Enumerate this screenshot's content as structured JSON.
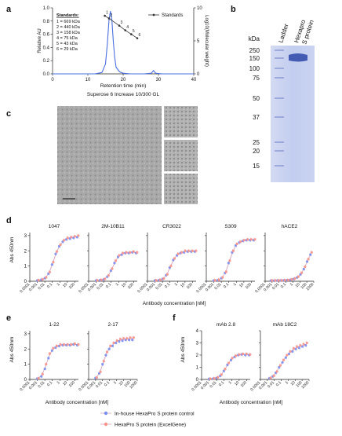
{
  "panels": {
    "a": {
      "label": "a",
      "xlabel": "Retention time (min)",
      "subtitle": "Superose 6 Increase 10/300 GL",
      "ylabel_left": "Relative AU",
      "ylabel_right": "Log10(Molecular weight)",
      "legend": "Standards",
      "standards_title": "Standards:",
      "standards": [
        "1 = 669 kDa",
        "2 = 440 kDa",
        "3 = 158 kDa",
        "4 = 75 kDa",
        "5 = 43 kDa",
        "6 = 29 kDa"
      ]
    },
    "b": {
      "label": "b",
      "lane_ladder": "Ladder",
      "lane_sample_line1": "Hexapro",
      "lane_sample_line2": "S protein",
      "unit": "kDa",
      "markers": [
        "250",
        "150",
        "100",
        "75",
        "50",
        "37",
        "25",
        "20",
        "15"
      ]
    },
    "c": {
      "label": "c"
    },
    "d": {
      "label": "d",
      "xlabel": "Antibody concentration [nM]",
      "ylabel": "Abs 450nm"
    },
    "e": {
      "label": "e",
      "xlabel": "Antibody concentration [nM]",
      "ylabel": "Abs 450nm"
    },
    "f": {
      "label": "f",
      "xlabel": "Antibody concentration [nM]",
      "ylabel": "Abs 450nm"
    }
  },
  "legend": {
    "series1": "In-house HexaPro S protein control",
    "series2": "HexaPro S protein (ExcelGene)"
  },
  "colors": {
    "series1": "#7b8ff0",
    "series2": "#f5948c",
    "curve": "#d7a3b8",
    "chromatogram": "#4a6fe0",
    "gel_bg": "#c9d2ee",
    "band": "#2d47a8"
  },
  "chart_data": [
    {
      "id": "a",
      "type": "line",
      "xlabel": "Retention time (min)",
      "ylabel": "Relative AU",
      "ylabel_right": "Log10(Molecular weight)",
      "xlim": [
        0,
        40
      ],
      "ylim": [
        0,
        1.0
      ],
      "ylim_right": [
        0,
        10
      ],
      "x_ticks": [
        0,
        10,
        20,
        30,
        40
      ],
      "y_ticks": [
        "0.0",
        "0.2",
        "0.4",
        "0.6",
        "0.8",
        "1.0"
      ],
      "y_ticks_right": [
        0,
        5,
        10
      ],
      "series": [
        {
          "x": [
            0,
            8,
            12,
            14,
            15,
            15.5,
            16,
            16.4,
            16.8,
            17.2,
            17.6,
            18,
            19,
            20,
            22,
            26,
            28,
            28.6,
            29.2,
            31,
            40
          ],
          "y": [
            0.0,
            0.0,
            0.0,
            0.02,
            0.15,
            0.45,
            0.82,
            0.95,
            0.82,
            0.5,
            0.25,
            0.1,
            0.03,
            0.01,
            0.0,
            0.0,
            0.01,
            0.05,
            0.01,
            0.0,
            0.0
          ]
        },
        {
          "name": "Standards",
          "axis": "right",
          "x": [
            14.8,
            16.0,
            18.9,
            20.6,
            22.3,
            24.0
          ],
          "y": [
            8.8,
            8.4,
            7.3,
            6.6,
            6.0,
            5.4
          ],
          "labels": [
            "1",
            "2",
            "3",
            "4",
            "5",
            "6"
          ]
        }
      ]
    },
    {
      "id": "d",
      "type": "scatter",
      "x_ticks": [
        "0.0001",
        "0.001",
        "0.01",
        "0.1",
        "1",
        "10",
        "100",
        "1000"
      ],
      "y_ticks": [
        "0",
        "1",
        "2",
        "3"
      ],
      "ylim": [
        0,
        3.2
      ],
      "log_x": true,
      "x": [
        0.0012,
        0.0041,
        0.0123,
        0.037,
        0.111,
        0.333,
        1,
        3,
        9,
        27,
        81,
        243
      ],
      "plots": [
        {
          "title": "1047",
          "xlim": [
            0.0001,
            300
          ],
          "series": [
            {
              "values": [
                0.05,
                0.1,
                0.2,
                0.5,
                1.1,
                1.8,
                2.3,
                2.6,
                2.75,
                2.8,
                2.85,
                2.9
              ]
            },
            {
              "values": [
                0.07,
                0.12,
                0.25,
                0.6,
                1.25,
                1.95,
                2.4,
                2.7,
                2.85,
                2.9,
                2.95,
                3.0
              ]
            }
          ]
        },
        {
          "title": "2M-10B11",
          "xlim": [
            0.0001,
            300
          ],
          "series": [
            {
              "values": [
                0.05,
                0.07,
                0.12,
                0.3,
                0.7,
                1.2,
                1.6,
                1.75,
                1.85,
                1.85,
                1.9,
                1.85
              ]
            },
            {
              "values": [
                0.06,
                0.09,
                0.15,
                0.38,
                0.82,
                1.35,
                1.7,
                1.85,
                1.9,
                1.9,
                1.95,
                1.9
              ]
            }
          ]
        },
        {
          "title": "CR3022",
          "xlim": [
            0.0001,
            300
          ],
          "series": [
            {
              "values": [
                0.05,
                0.07,
                0.15,
                0.4,
                0.9,
                1.4,
                1.7,
                1.85,
                1.9,
                1.95,
                1.95,
                1.95
              ]
            },
            {
              "values": [
                0.06,
                0.09,
                0.18,
                0.45,
                1.0,
                1.5,
                1.8,
                1.9,
                2.0,
                2.0,
                2.0,
                2.0
              ]
            }
          ]
        },
        {
          "title": "S309",
          "xlim": [
            0.0001,
            300
          ],
          "series": [
            {
              "values": [
                0.05,
                0.08,
                0.2,
                0.55,
                1.2,
                1.9,
                2.35,
                2.55,
                2.65,
                2.7,
                2.7,
                2.7
              ]
            },
            {
              "values": [
                0.06,
                0.1,
                0.25,
                0.62,
                1.35,
                2.0,
                2.45,
                2.6,
                2.7,
                2.75,
                2.75,
                2.75
              ]
            }
          ]
        },
        {
          "title": "hACE2",
          "xlim": [
            0.0001,
            1000
          ],
          "x": [
            0.0008,
            0.0024,
            0.0072,
            0.02,
            0.06,
            0.18,
            0.55,
            1.6,
            5,
            15,
            45,
            135,
            400
          ],
          "series": [
            {
              "values": [
                0.04,
                0.04,
                0.05,
                0.05,
                0.06,
                0.07,
                0.1,
                0.15,
                0.25,
                0.45,
                0.8,
                1.3,
                1.75
              ]
            },
            {
              "values": [
                0.05,
                0.05,
                0.06,
                0.06,
                0.07,
                0.08,
                0.12,
                0.18,
                0.3,
                0.55,
                0.95,
                1.45,
                1.9
              ]
            }
          ]
        }
      ]
    },
    {
      "id": "e",
      "type": "scatter",
      "x_ticks": [
        "0.0001",
        "0.001",
        "0.01",
        "0.1",
        "1",
        "10",
        "100",
        "1000"
      ],
      "y_ticks": [
        "0",
        "1",
        "2",
        "3"
      ],
      "ylim": [
        0,
        3.2
      ],
      "log_x": true,
      "x": [
        0.0012,
        0.0041,
        0.0123,
        0.037,
        0.111,
        0.333,
        1,
        3,
        9,
        27,
        81,
        243
      ],
      "plots": [
        {
          "title": "1-22",
          "xlim": [
            0.0001,
            300
          ],
          "series": [
            {
              "values": [
                0.05,
                0.2,
                0.7,
                1.4,
                1.9,
                2.1,
                2.2,
                2.25,
                2.25,
                2.25,
                2.3,
                2.25
              ]
            },
            {
              "values": [
                0.08,
                0.35,
                1.0,
                1.7,
                2.05,
                2.2,
                2.3,
                2.3,
                2.3,
                2.3,
                2.35,
                2.3
              ]
            }
          ]
        },
        {
          "title": "2-17",
          "xlim": [
            0.0001,
            1000
          ],
          "series": [
            {
              "values": [
                0.1,
                0.4,
                1.0,
                1.6,
                2.0,
                2.2,
                2.4,
                2.5,
                2.55,
                2.6,
                2.6,
                2.6
              ]
            },
            {
              "values": [
                0.12,
                0.5,
                1.2,
                1.8,
                2.2,
                2.4,
                2.55,
                2.65,
                2.7,
                2.7,
                2.75,
                2.75
              ]
            }
          ]
        }
      ]
    },
    {
      "id": "f",
      "type": "scatter",
      "x_ticks": [
        "0.0001",
        "0.001",
        "0.01",
        "0.1",
        "1",
        "10",
        "100",
        "1000"
      ],
      "y_ticks": [
        "0",
        "1",
        "2",
        "3",
        "4"
      ],
      "ylim": [
        0,
        4
      ],
      "log_x": true,
      "x": [
        0.0012,
        0.0041,
        0.0123,
        0.037,
        0.111,
        0.333,
        1,
        3,
        9,
        27,
        81,
        243
      ],
      "plots": [
        {
          "title": "mAb 2.8",
          "xlim": [
            0.0001,
            300
          ],
          "series": [
            {
              "values": [
                0.05,
                0.07,
                0.12,
                0.3,
                0.7,
                1.2,
                1.6,
                1.85,
                2.0,
                2.05,
                2.0,
                2.0
              ]
            },
            {
              "values": [
                0.06,
                0.09,
                0.18,
                0.4,
                0.85,
                1.35,
                1.75,
                1.95,
                2.05,
                2.1,
                2.1,
                2.05
              ]
            }
          ]
        },
        {
          "title": "mAb 18C2",
          "xlim": [
            0.0001,
            1000
          ],
          "x": [
            0.0024,
            0.0072,
            0.02,
            0.06,
            0.18,
            0.55,
            1.6,
            5,
            15,
            45,
            135,
            400
          ],
          "series": [
            {
              "values": [
                0.1,
                0.25,
                0.55,
                1.0,
                1.4,
                1.8,
                2.1,
                2.3,
                2.5,
                2.6,
                2.7,
                2.8
              ]
            },
            {
              "values": [
                0.12,
                0.3,
                0.65,
                1.15,
                1.6,
                2.0,
                2.3,
                2.55,
                2.7,
                2.8,
                2.9,
                3.0
              ]
            }
          ]
        }
      ]
    }
  ]
}
